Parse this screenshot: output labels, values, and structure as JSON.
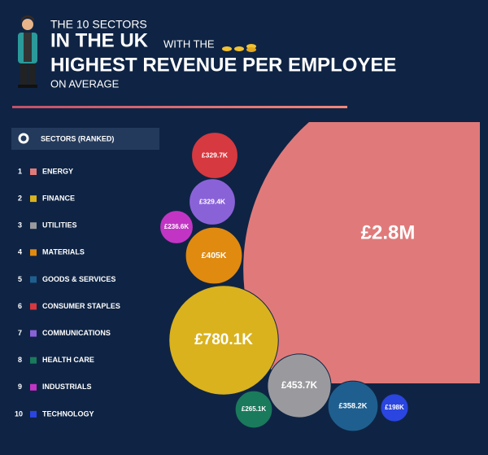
{
  "chart_data": {
    "type": "bubble",
    "title_line1": "THE 10 SECTORS",
    "title_line2": "IN THE UK",
    "title_line2_suffix": "WITH THE",
    "title_line3": "HIGHEST REVENUE PER EMPLOYEE",
    "title_line4": "ON AVERAGE",
    "legend_title": "SECTORS (RANKED)",
    "ranks": [
      1,
      2,
      3,
      4,
      5,
      6,
      7,
      8,
      9,
      10
    ],
    "categories": [
      "ENERGY",
      "FINANCE",
      "UTILITIES",
      "MATERIALS",
      "GOODS & SERVICES",
      "CONSUMER STAPLES",
      "COMMUNICATIONS",
      "HEALTH CARE",
      "INDUSTRIALS",
      "TECHNOLOGY"
    ],
    "values": [
      2800000,
      780100,
      453700,
      405000,
      358200,
      329700,
      329400,
      265100,
      236600,
      198000
    ],
    "value_labels": [
      "£2.8M",
      "£780.1K",
      "£453.7K",
      "£405K",
      "£358.2K",
      "£329.7K",
      "£329.4K",
      "£265.1K",
      "£236.6K",
      "£198K"
    ],
    "colors": [
      "#e07a7a",
      "#d9b21e",
      "#9a9a9e",
      "#e08a10",
      "#1f5f8f",
      "#d6393f",
      "#8a62d8",
      "#1a7a5c",
      "#c235c4",
      "#2a45e0"
    ]
  }
}
